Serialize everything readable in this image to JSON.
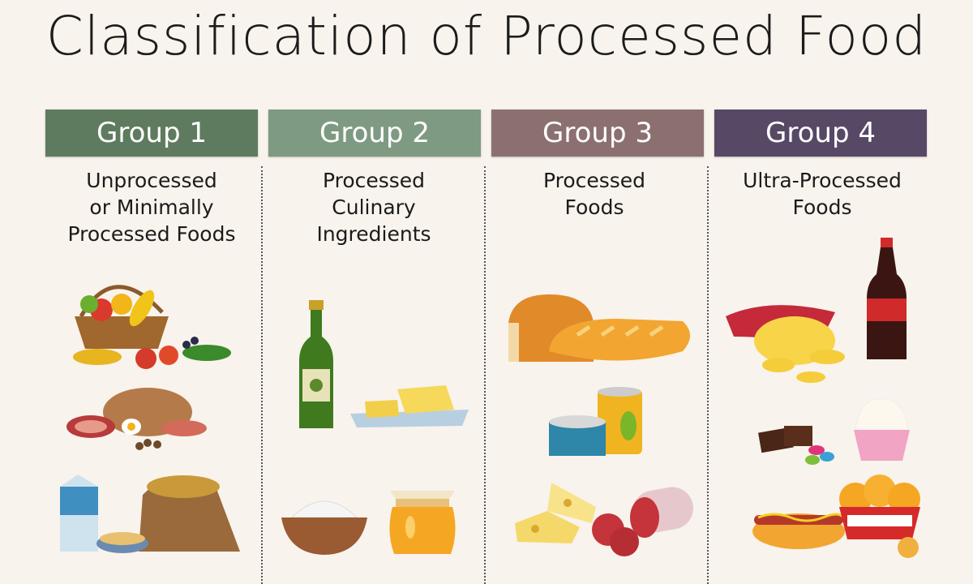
{
  "title": "Classification of Processed Food",
  "groups": [
    {
      "label": "Group 1",
      "color": "#5f7b5f",
      "description": [
        "Unprocessed",
        "or Minimally",
        "Processed Foods"
      ],
      "items": [
        "fruit-vegetable-basket",
        "meat-poultry-eggs",
        "milk-grains-legumes"
      ]
    },
    {
      "label": "Group 2",
      "color": "#7f9a82",
      "description": [
        "Processed",
        "Culinary",
        "Ingredients"
      ],
      "items": [
        "olive-oil",
        "butter",
        "salt-flour",
        "honey"
      ]
    },
    {
      "label": "Group 3",
      "color": "#8c7070",
      "description": [
        "Processed",
        "Foods"
      ],
      "items": [
        "bread",
        "canned-foods",
        "cheese",
        "salami"
      ]
    },
    {
      "label": "Group 4",
      "color": "#574866",
      "description": [
        "Ultra-Processed",
        "Foods"
      ],
      "items": [
        "chips",
        "soda",
        "chocolate-candy",
        "cupcake",
        "hot-dog",
        "chicken-nuggets"
      ]
    }
  ]
}
